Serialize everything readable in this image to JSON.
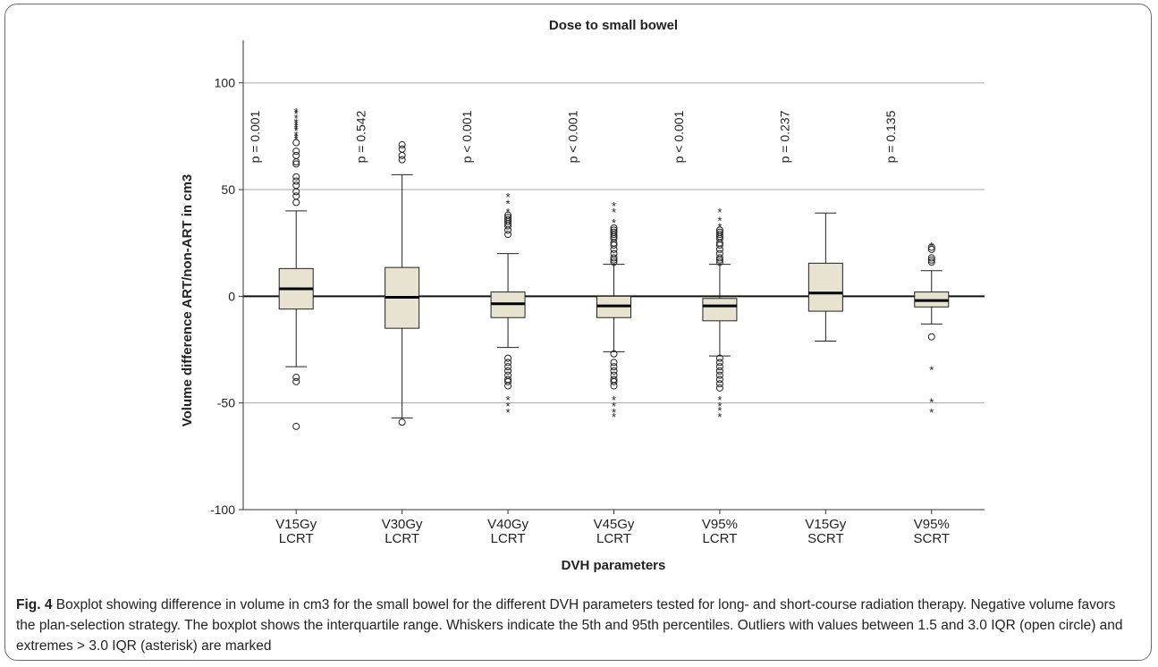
{
  "chart_data": {
    "type": "boxplot",
    "title": "Dose to small bowel",
    "xlabel": "DVH parameters",
    "ylabel": "Volume difference ART/non-ART in cm3",
    "ylim": [
      -100,
      120
    ],
    "yticks": [
      -100,
      -50,
      0,
      50,
      100
    ],
    "ytick_labels": [
      "-100",
      "-50",
      "0",
      "50",
      "100"
    ],
    "gridlines": [
      -50,
      50,
      100
    ],
    "reference_line": 0,
    "box_color": "#e8e2d0",
    "categories": [
      {
        "line1": "V15Gy",
        "line2": "LCRT",
        "p": "p = 0.001",
        "q1": -6,
        "median": 3.5,
        "q3": 13,
        "whisker_low": -33,
        "whisker_high": 40,
        "outliers": [
          -40,
          -38,
          -61,
          44,
          47,
          49,
          52,
          54,
          56,
          62,
          63,
          66,
          68,
          72
        ],
        "extremes": [
          74,
          75,
          76,
          78,
          79,
          80,
          81,
          82,
          84,
          86,
          87
        ]
      },
      {
        "line1": "V30Gy",
        "line2": "LCRT",
        "p": "p = 0.542",
        "q1": -15,
        "median": -0.5,
        "q3": 13.5,
        "whisker_low": -57,
        "whisker_high": 57,
        "outliers": [
          -59,
          64,
          66,
          69,
          71
        ],
        "extremes": []
      },
      {
        "line1": "V40Gy",
        "line2": "LCRT",
        "p": "p < 0.001",
        "q1": -10,
        "median": -3.5,
        "q3": 2,
        "whisker_low": -24,
        "whisker_high": 20,
        "outliers": [
          -29,
          -31,
          -33,
          -35,
          -37,
          -39,
          -40,
          -42,
          29,
          31,
          33,
          34,
          35,
          36,
          37,
          38
        ],
        "extremes": [
          -48,
          -51,
          -54,
          40,
          44,
          47
        ]
      },
      {
        "line1": "V45Gy",
        "line2": "LCRT",
        "p": "p < 0.001",
        "q1": -10,
        "median": -4.5,
        "q3": 0,
        "whisker_low": -26,
        "whisker_high": 15,
        "outliers": [
          -27,
          -31,
          -33,
          -35,
          -37,
          -39,
          -40,
          -42,
          16,
          17,
          18,
          20,
          22,
          24,
          25,
          27,
          28,
          29,
          30,
          31,
          32
        ],
        "extremes": [
          -48,
          -51,
          -54,
          -56,
          35,
          40,
          43
        ]
      },
      {
        "line1": "V95%",
        "line2": "LCRT",
        "p": "p < 0.001",
        "q1": -11.5,
        "median": -4.5,
        "q3": -1,
        "whisker_low": -28,
        "whisker_high": 15,
        "outliers": [
          -29,
          -31,
          -33,
          -35,
          -37,
          -39,
          -41,
          -43,
          16,
          17,
          18,
          20,
          22,
          24,
          25,
          27,
          28,
          29,
          30,
          31
        ],
        "extremes": [
          -48,
          -51,
          -53,
          -56,
          33,
          36,
          40
        ]
      },
      {
        "line1": "V15Gy",
        "line2": "SCRT",
        "p": "p = 0.237",
        "q1": -7,
        "median": 1.5,
        "q3": 15.5,
        "whisker_low": -21,
        "whisker_high": 39,
        "outliers": [],
        "extremes": []
      },
      {
        "line1": "V95%",
        "line2": "SCRT",
        "p": "p = 0.135",
        "q1": -5,
        "median": -2,
        "q3": 2,
        "whisker_low": -13,
        "whisker_high": 12,
        "outliers": [
          -19,
          16,
          17,
          18,
          22,
          23
        ],
        "extremes": [
          -34,
          -49,
          -54,
          24
        ]
      }
    ]
  },
  "caption": {
    "label": "Fig. 4",
    "text": " Boxplot showing difference in volume in cm3 for the small bowel for the different DVH parameters tested for long- and short-course radiation therapy. Negative volume favors the plan-selection strategy. The boxplot shows the interquartile range. Whiskers indicate the 5th and 95th percentiles. Outliers with values between 1.5 and 3.0 IQR (open circle) and extremes > 3.0 IQR (asterisk) are marked"
  }
}
